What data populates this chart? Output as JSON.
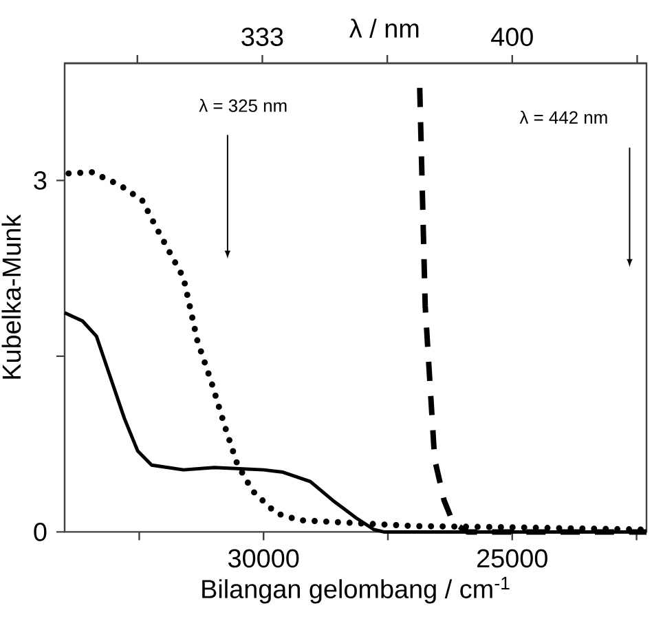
{
  "chart_data": {
    "type": "line",
    "xlabel": "Bilangan gelombang / cm$^{-1}$",
    "ylabel": "Kubelka-Munk",
    "x2label": "λ / nm",
    "xlim": [
      34000,
      22300
    ],
    "ylim": [
      0,
      4
    ],
    "xticks": [
      {
        "value": 32500,
        "label": null
      },
      30000,
      {
        "value": 27500,
        "label": null
      },
      25000,
      {
        "value": 22500,
        "label": null
      }
    ],
    "yticks": [
      0,
      {
        "value": 1.5,
        "label": null
      },
      3
    ],
    "x2lim": [
      280,
      436
    ],
    "x2ticks": [
      {
        "value": 299.5,
        "label": null
      },
      333,
      {
        "value": 366.5,
        "label": null
      },
      400,
      {
        "value": 433.5,
        "label": null
      }
    ],
    "series": [
      {
        "color": "#000000",
        "line_style": "solid",
        "x": [
          34000,
          33640,
          33360,
          33080,
          32800,
          32530,
          32250,
          31610,
          30990,
          30000,
          29610,
          29060,
          28610,
          28140,
          27780,
          27580,
          22300
        ],
        "values": [
          1.87,
          1.8,
          1.67,
          1.32,
          0.97,
          0.69,
          0.57,
          0.53,
          0.55,
          0.53,
          0.51,
          0.43,
          0.27,
          0.12,
          0.02,
          0,
          0
        ]
      },
      {
        "color": "#000000",
        "line_style": "dotted",
        "x": [
          33920,
          33450,
          32890,
          32440,
          32160,
          31880,
          31610,
          31330,
          31050,
          30770,
          30530,
          30220,
          29750,
          29280,
          28360,
          26970,
          25110,
          22330
        ],
        "values": [
          3.06,
          3.07,
          2.96,
          2.83,
          2.6,
          2.38,
          2.17,
          1.63,
          1.28,
          0.89,
          0.58,
          0.35,
          0.16,
          0.1,
          0.08,
          0.05,
          0.04,
          0.02
        ]
      },
      {
        "color": "#000000",
        "line_style": "dashed",
        "x": [
          26860,
          26750,
          26560,
          26370,
          26190,
          25900,
          22300
        ],
        "values": [
          3.79,
          1.93,
          0.62,
          0.27,
          0.08,
          0,
          0
        ]
      }
    ],
    "annotations": [
      "λ = 325 nm",
      "λ = 442 nm"
    ]
  }
}
